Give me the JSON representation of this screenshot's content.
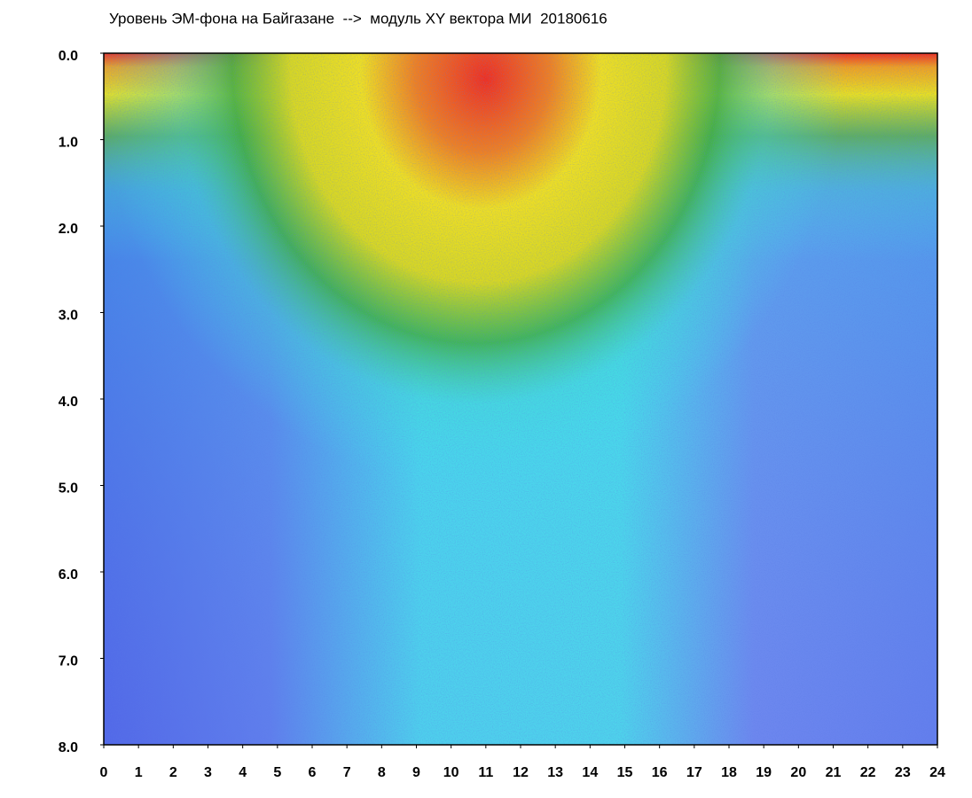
{
  "chart_data": {
    "type": "heatmap",
    "title": "Уровень ЭМ-фона на Байгазане  -->  модуль XY вектора МИ  20180616",
    "xlim": [
      0,
      24
    ],
    "xticks": [
      0,
      1,
      2,
      3,
      4,
      5,
      6,
      7,
      8,
      9,
      10,
      11,
      12,
      13,
      14,
      15,
      16,
      17,
      18,
      19,
      20,
      21,
      22,
      23,
      24
    ],
    "ylim": [
      0,
      8
    ],
    "y_inverted": true,
    "yticks": [
      {
        "value": 0,
        "label": "0.0"
      },
      {
        "value": 1,
        "label": "1.0"
      },
      {
        "value": 2,
        "label": "2.0"
      },
      {
        "value": 3,
        "label": "3.0"
      },
      {
        "value": 4,
        "label": "4.0"
      },
      {
        "value": 5,
        "label": "5.0"
      },
      {
        "value": 6,
        "label": "6.0"
      },
      {
        "value": 7,
        "label": "7.0"
      },
      {
        "value": 8,
        "label": "8.0"
      }
    ]
  }
}
